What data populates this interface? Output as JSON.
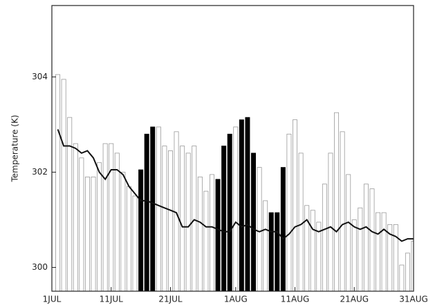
{
  "chart_data": {
    "type": "bar_line",
    "y_label": "Temperature (K)",
    "x": [
      2,
      3,
      4,
      5,
      6,
      7,
      8,
      9,
      10,
      11,
      12,
      13,
      14,
      15,
      16,
      17,
      18,
      19,
      20,
      21,
      22,
      23,
      24,
      25,
      26,
      27,
      28,
      29,
      30,
      31,
      32,
      33,
      34,
      35,
      36,
      37,
      38,
      39,
      40,
      41,
      42,
      43,
      44,
      45,
      46,
      47,
      48,
      49,
      50,
      51,
      52,
      53,
      54,
      55,
      56,
      57,
      58,
      59,
      60,
      61,
      62
    ],
    "series": [
      {
        "kind": "bar",
        "color": "#ffffff",
        "bar_colors": [
          "#ffffff",
          "#ffffff",
          "#ffffff",
          "#ffffff",
          "#ffffff",
          "#ffffff",
          "#ffffff",
          "#ffffff",
          "#ffffff",
          "#ffffff",
          "#ffffff",
          "#ffffff",
          "#ffffff",
          "#ffffff",
          "#000000",
          "#000000",
          "#000000",
          "#ffffff",
          "#ffffff",
          "#ffffff",
          "#ffffff",
          "#ffffff",
          "#ffffff",
          "#ffffff",
          "#ffffff",
          "#ffffff",
          "#ffffff",
          "#000000",
          "#000000",
          "#000000",
          "#ffffff",
          "#000000",
          "#000000",
          "#000000",
          "#ffffff",
          "#ffffff",
          "#000000",
          "#000000",
          "#000000",
          "#ffffff",
          "#ffffff",
          "#ffffff",
          "#ffffff",
          "#ffffff",
          "#ffffff",
          "#ffffff",
          "#ffffff",
          "#ffffff",
          "#ffffff",
          "#ffffff",
          "#ffffff",
          "#ffffff",
          "#ffffff",
          "#ffffff",
          "#ffffff",
          "#ffffff",
          "#ffffff",
          "#ffffff",
          "#ffffff",
          "#ffffff",
          "#ffffff"
        ],
        "values": [
          304.05,
          303.95,
          303.15,
          302.6,
          302.3,
          301.9,
          301.9,
          302.2,
          302.6,
          302.6,
          302.4,
          302.0,
          301.7,
          301.5,
          302.05,
          302.8,
          302.95,
          302.95,
          302.55,
          302.45,
          302.85,
          302.55,
          302.4,
          302.55,
          301.9,
          301.6,
          301.95,
          301.85,
          302.55,
          302.8,
          302.95,
          303.1,
          303.15,
          302.4,
          302.1,
          301.4,
          301.15,
          301.15,
          302.1,
          302.8,
          303.1,
          302.4,
          301.3,
          301.2,
          300.95,
          301.75,
          302.4,
          303.25,
          302.85,
          301.95,
          301.0,
          301.25,
          301.75,
          301.65,
          301.15,
          301.15,
          300.9,
          300.9,
          300.05,
          300.3,
          300.55
        ]
      },
      {
        "kind": "line",
        "color": "#111111",
        "values": [
          302.9,
          302.55,
          302.55,
          302.5,
          302.4,
          302.45,
          302.3,
          302.0,
          301.85,
          302.05,
          302.05,
          301.95,
          301.7,
          301.55,
          301.4,
          301.4,
          301.35,
          301.3,
          301.25,
          301.2,
          301.15,
          300.85,
          300.85,
          301.0,
          300.95,
          300.85,
          300.85,
          300.8,
          300.75,
          300.75,
          300.95,
          300.85,
          300.9,
          300.8,
          300.75,
          300.8,
          300.75,
          300.75,
          300.6,
          300.7,
          300.85,
          300.9,
          301.0,
          300.8,
          300.75,
          300.8,
          300.85,
          300.75,
          300.9,
          300.95,
          300.85,
          300.8,
          300.85,
          300.75,
          300.7,
          300.8,
          300.7,
          300.65,
          300.55,
          300.6,
          300.6
        ]
      }
    ],
    "xlim": [
      1,
      62
    ],
    "xticks": [
      {
        "value": 1,
        "label": "1JUL"
      },
      {
        "value": 11,
        "label": "11JUL"
      },
      {
        "value": 21,
        "label": "21JUL"
      },
      {
        "value": 32,
        "label": "1AUG"
      },
      {
        "value": 42,
        "label": "11AUG"
      },
      {
        "value": 52,
        "label": "21AUG"
      },
      {
        "value": 62,
        "label": "31AUG"
      }
    ],
    "ylim": [
      299.5,
      305.5
    ],
    "yticks": [
      300,
      302,
      304
    ]
  }
}
